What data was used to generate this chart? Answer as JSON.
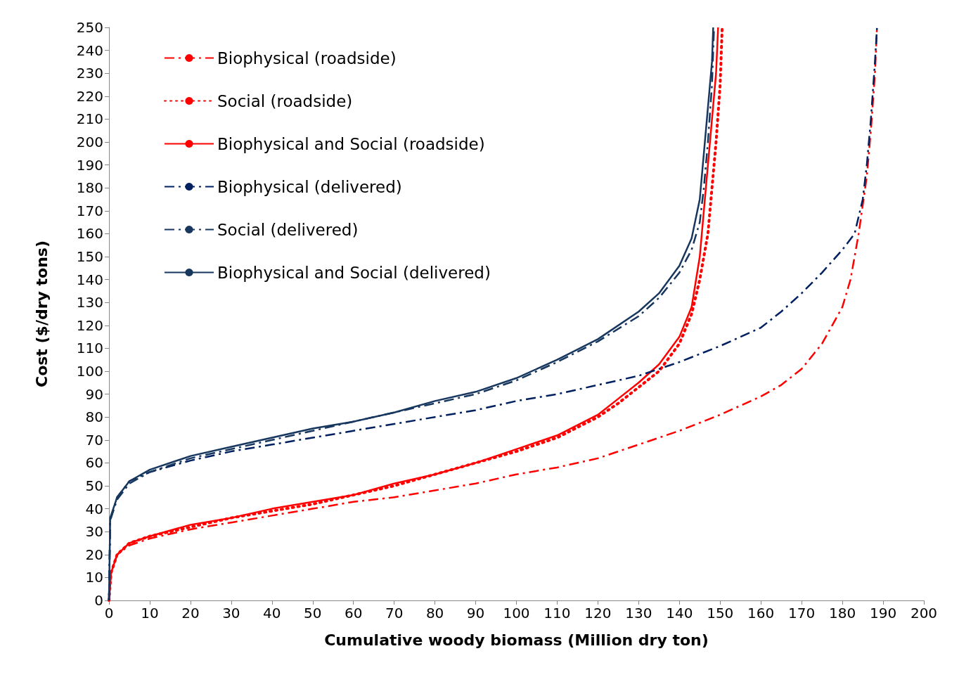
{
  "chart_data": {
    "type": "line",
    "xlabel": "Cumulative woody biomass (Million dry ton)",
    "ylabel": "Cost ($/dry tons)",
    "xlim": [
      0,
      200
    ],
    "xticks": [
      0,
      10,
      20,
      30,
      40,
      50,
      60,
      70,
      80,
      90,
      100,
      110,
      120,
      130,
      140,
      150,
      160,
      170,
      180,
      190,
      200
    ],
    "ylim": [
      0,
      250
    ],
    "yticks": [
      0,
      10,
      20,
      30,
      40,
      50,
      60,
      70,
      80,
      90,
      100,
      110,
      120,
      130,
      140,
      150,
      160,
      170,
      180,
      190,
      200,
      210,
      220,
      230,
      240,
      250
    ],
    "grid": false,
    "legend": "top left",
    "marker": "none",
    "series": [
      {
        "name": "Biophysical (roadside)",
        "color": "#ff0000",
        "line_style": "dashed",
        "x": [
          0,
          0.5,
          2,
          5,
          10,
          20,
          30,
          40,
          50,
          60,
          70,
          80,
          90,
          100,
          110,
          120,
          130,
          140,
          150,
          160,
          165,
          170,
          175,
          180,
          182,
          184,
          186,
          187,
          188,
          188.5
        ],
        "values": [
          0,
          12,
          20,
          24,
          27,
          31,
          34,
          37,
          40,
          43,
          45,
          48,
          51,
          55,
          58,
          62,
          68,
          74,
          81,
          89,
          94,
          101,
          112,
          128,
          140,
          160,
          185,
          205,
          230,
          250
        ]
      },
      {
        "name": "Social (roadside)",
        "color": "#ff0000",
        "line_style": "dotted",
        "x": [
          0,
          0.5,
          2,
          5,
          10,
          20,
          30,
          40,
          50,
          60,
          70,
          80,
          90,
          100,
          110,
          120,
          125,
          130,
          135,
          140,
          143,
          145,
          147,
          148,
          149,
          150,
          150.5
        ],
        "values": [
          0,
          12,
          20,
          25,
          28,
          32,
          36,
          39,
          42,
          46,
          50,
          55,
          60,
          65,
          71,
          80,
          86,
          93,
          100,
          112,
          125,
          140,
          160,
          180,
          200,
          225,
          250
        ]
      },
      {
        "name": "Biophysical and Social (roadside)",
        "color": "#ff0000",
        "line_style": "solid",
        "x": [
          0,
          0.5,
          2,
          5,
          10,
          20,
          30,
          40,
          50,
          60,
          70,
          80,
          90,
          100,
          110,
          120,
          125,
          130,
          135,
          140,
          143,
          145,
          146,
          147,
          148,
          149,
          149.5
        ],
        "values": [
          0,
          12,
          20,
          25,
          28,
          33,
          36,
          40,
          43,
          46,
          51,
          55,
          60,
          66,
          72,
          81,
          88,
          95,
          103,
          115,
          128,
          150,
          170,
          190,
          210,
          230,
          250
        ]
      },
      {
        "name": "Biophysical (delivered)",
        "color": "#002060",
        "line_style": "dashed",
        "x": [
          0,
          0.3,
          2,
          5,
          10,
          20,
          30,
          40,
          50,
          60,
          70,
          80,
          90,
          100,
          110,
          120,
          130,
          140,
          150,
          160,
          165,
          170,
          175,
          180,
          183,
          185,
          186,
          187,
          188,
          188.5
        ],
        "values": [
          0,
          35,
          45,
          52,
          56,
          61,
          65,
          68,
          71,
          74,
          77,
          80,
          83,
          87,
          90,
          94,
          98,
          104,
          111,
          119,
          126,
          134,
          143,
          153,
          160,
          175,
          190,
          210,
          235,
          250
        ]
      },
      {
        "name": "Social (delivered)",
        "color": "#17375e",
        "line_style": "dashed",
        "x": [
          0,
          0.3,
          2,
          5,
          10,
          20,
          30,
          40,
          50,
          60,
          70,
          80,
          90,
          100,
          110,
          120,
          130,
          135,
          140,
          143,
          145,
          146,
          147,
          148,
          148.5
        ],
        "values": [
          0,
          35,
          44,
          51,
          56,
          62,
          66,
          70,
          74,
          78,
          82,
          86,
          90,
          96,
          104,
          113,
          124,
          132,
          143,
          153,
          165,
          180,
          200,
          225,
          250
        ]
      },
      {
        "name": "Biophysical and Social (delivered)",
        "color": "#17375e",
        "line_style": "solid",
        "x": [
          0,
          0.3,
          2,
          5,
          10,
          20,
          30,
          40,
          50,
          60,
          70,
          80,
          90,
          100,
          110,
          120,
          130,
          135,
          140,
          143,
          145,
          146,
          147,
          148,
          148.3
        ],
        "values": [
          0,
          36,
          45,
          52,
          57,
          63,
          67,
          71,
          75,
          78,
          82,
          87,
          91,
          97,
          105,
          114,
          126,
          134,
          146,
          158,
          175,
          195,
          215,
          235,
          250
        ]
      }
    ]
  }
}
